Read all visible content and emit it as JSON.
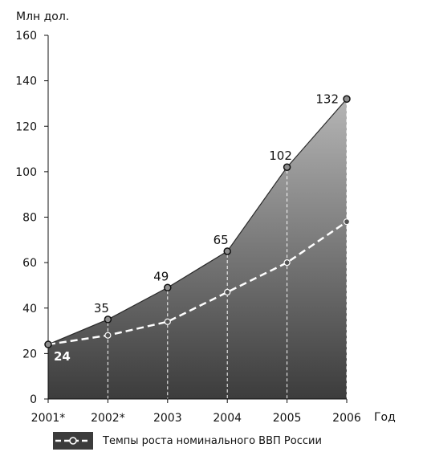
{
  "chart_data": {
    "type": "area",
    "ylabel": "Млн дол.",
    "xlabel": "Год",
    "ylim": [
      0,
      160
    ],
    "yticks": [
      0,
      20,
      40,
      60,
      80,
      100,
      120,
      140,
      160
    ],
    "categories": [
      "2001*",
      "2002*",
      "2003",
      "2004",
      "2005",
      "2006"
    ],
    "series": [
      {
        "values": [
          24,
          35,
          49,
          65,
          102,
          132
        ],
        "data_labels": [
          "24",
          "35",
          "49",
          "65",
          "102",
          "132"
        ],
        "style": "area",
        "fill_top": "#b5b5b5",
        "fill_bottom": "#3c3c3c"
      },
      {
        "name": "Темпы роста номинального ВВП России",
        "values": [
          24,
          28,
          34,
          47,
          60,
          78
        ],
        "style": "dashed-line",
        "color": "#ffffff"
      }
    ],
    "grid": false,
    "legend_position": "bottom-left"
  }
}
